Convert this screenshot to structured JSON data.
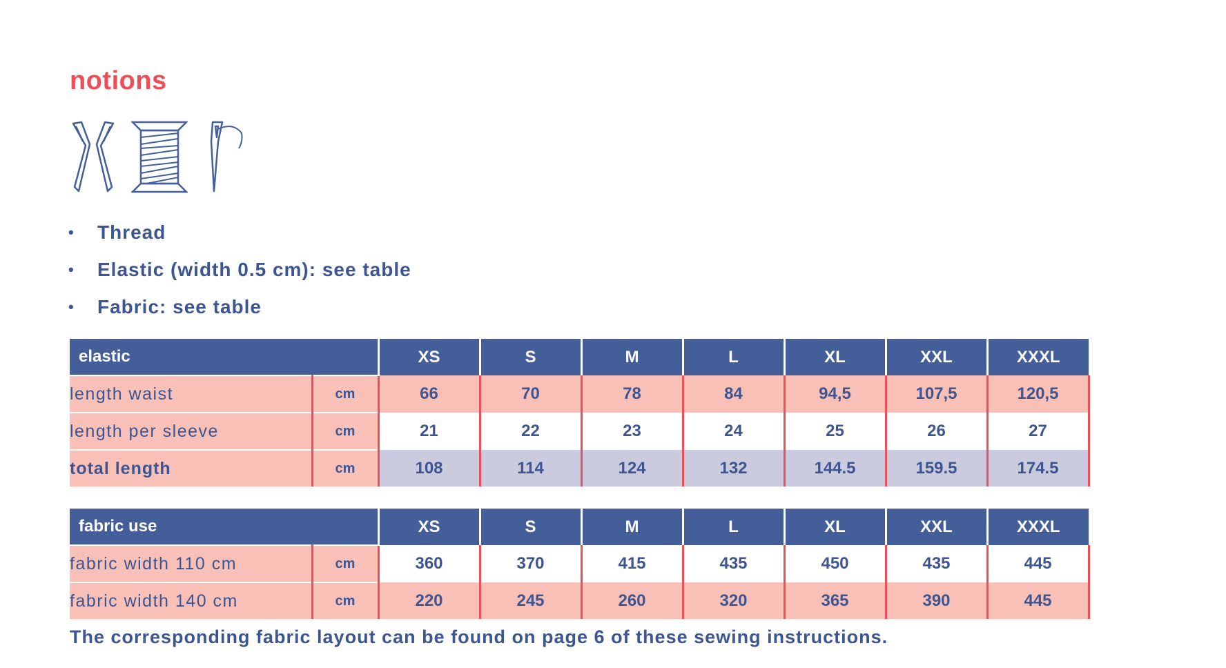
{
  "title": "notions",
  "icons": [
    "scissors-icon",
    "thread-spool-icon",
    "needle-icon"
  ],
  "notions_list": [
    "Thread",
    "Elastic (width 0.5 cm): see table",
    "Fabric: see table"
  ],
  "bullet": "•",
  "sizes": [
    "XS",
    "S",
    "M",
    "L",
    "XL",
    "XXL",
    "XXXL"
  ],
  "elastic_table": {
    "header": "elastic",
    "rows": [
      {
        "label": "length waist",
        "unit": "cm",
        "values": [
          "66",
          "70",
          "78",
          "84",
          "94,5",
          "107,5",
          "120,5"
        ],
        "bold": false
      },
      {
        "label": "length per sleeve",
        "unit": "cm",
        "values": [
          "21",
          "22",
          "23",
          "24",
          "25",
          "26",
          "27"
        ],
        "bold": false
      },
      {
        "label": "total length",
        "unit": "cm",
        "values": [
          "108",
          "114",
          "124",
          "132",
          "144.5",
          "159.5",
          "174.5"
        ],
        "bold": true
      }
    ]
  },
  "fabric_table": {
    "header": "fabric use",
    "rows": [
      {
        "label": "fabric width 110 cm",
        "unit": "cm",
        "values": [
          "360",
          "370",
          "415",
          "435",
          "450",
          "435",
          "445"
        ],
        "bold": false
      },
      {
        "label": "fabric width 140 cm",
        "unit": "cm",
        "values": [
          "220",
          "245",
          "260",
          "320",
          "365",
          "390",
          "445"
        ],
        "bold": false
      }
    ]
  },
  "footnote": "The corresponding fabric layout can be found on page 6 of these sewing instructions.",
  "colors": {
    "accent_red": "#ec4f58",
    "header_blue": "#445e99",
    "text_blue": "#3d5590",
    "pink": "#f9c0b8",
    "lavender": "#cbcbe0"
  }
}
